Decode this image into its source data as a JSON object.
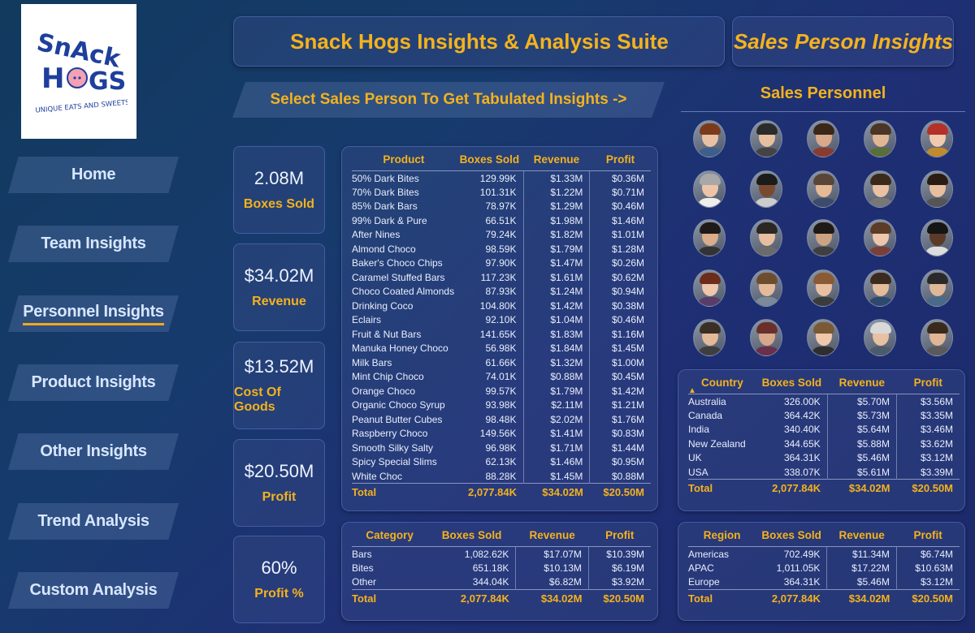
{
  "logo": {
    "brand": "SNACK HOGS",
    "tagline": "UNIQUE EATS AND SWEETS"
  },
  "nav": [
    "Home",
    "Team Insights",
    "Personnel Insights",
    "Product Insights",
    "Other Insights",
    "Trend Analysis",
    "Custom Analysis"
  ],
  "nav_active": "Personnel Insights",
  "title": "Snack Hogs Insights & Analysis Suite",
  "page_title": "Sales Person Insights",
  "select_prompt": "Select Sales Person To Get Tabulated Insights ->",
  "personnel_title": "Sales Personnel",
  "kpis": [
    {
      "value": "2.08M",
      "label": "Boxes Sold"
    },
    {
      "value": "$34.02M",
      "label": "Revenue"
    },
    {
      "value": "$13.52M",
      "label": "Cost Of Goods"
    },
    {
      "value": "$20.50M",
      "label": "Profit"
    },
    {
      "value": "60%",
      "label": "Profit %"
    }
  ],
  "product_table": {
    "headers": [
      "Product",
      "Boxes Sold",
      "Revenue",
      "Profit"
    ],
    "rows": [
      [
        "50% Dark Bites",
        "129.99K",
        "$1.33M",
        "$0.36M"
      ],
      [
        "70% Dark Bites",
        "101.31K",
        "$1.22M",
        "$0.71M"
      ],
      [
        "85% Dark Bars",
        "78.97K",
        "$1.29M",
        "$0.46M"
      ],
      [
        "99% Dark & Pure",
        "66.51K",
        "$1.98M",
        "$1.46M"
      ],
      [
        "After Nines",
        "79.24K",
        "$1.82M",
        "$1.01M"
      ],
      [
        "Almond Choco",
        "98.59K",
        "$1.79M",
        "$1.28M"
      ],
      [
        "Baker's Choco Chips",
        "97.90K",
        "$1.47M",
        "$0.26M"
      ],
      [
        "Caramel Stuffed Bars",
        "117.23K",
        "$1.61M",
        "$0.62M"
      ],
      [
        "Choco Coated Almonds",
        "87.93K",
        "$1.24M",
        "$0.94M"
      ],
      [
        "Drinking Coco",
        "104.80K",
        "$1.42M",
        "$0.38M"
      ],
      [
        "Eclairs",
        "92.10K",
        "$1.04M",
        "$0.46M"
      ],
      [
        "Fruit & Nut Bars",
        "141.65K",
        "$1.83M",
        "$1.16M"
      ],
      [
        "Manuka Honey Choco",
        "56.98K",
        "$1.84M",
        "$1.45M"
      ],
      [
        "Milk Bars",
        "61.66K",
        "$1.32M",
        "$1.00M"
      ],
      [
        "Mint Chip Choco",
        "74.01K",
        "$0.88M",
        "$0.45M"
      ],
      [
        "Orange Choco",
        "99.57K",
        "$1.79M",
        "$1.42M"
      ],
      [
        "Organic Choco Syrup",
        "93.98K",
        "$2.11M",
        "$1.21M"
      ],
      [
        "Peanut Butter Cubes",
        "98.48K",
        "$2.02M",
        "$1.76M"
      ],
      [
        "Raspberry Choco",
        "149.56K",
        "$1.41M",
        "$0.83M"
      ],
      [
        "Smooth Silky Salty",
        "96.98K",
        "$1.71M",
        "$1.44M"
      ],
      [
        "Spicy Special Slims",
        "62.13K",
        "$1.46M",
        "$0.95M"
      ],
      [
        "White Choc",
        "88.28K",
        "$1.45M",
        "$0.88M"
      ]
    ],
    "total": [
      "Total",
      "2,077.84K",
      "$34.02M",
      "$20.50M"
    ]
  },
  "category_table": {
    "headers": [
      "Category",
      "Boxes Sold",
      "Revenue",
      "Profit"
    ],
    "rows": [
      [
        "Bars",
        "1,082.62K",
        "$17.07M",
        "$10.39M"
      ],
      [
        "Bites",
        "651.18K",
        "$10.13M",
        "$6.19M"
      ],
      [
        "Other",
        "344.04K",
        "$6.82M",
        "$3.92M"
      ]
    ],
    "total": [
      "Total",
      "2,077.84K",
      "$34.02M",
      "$20.50M"
    ]
  },
  "country_table": {
    "headers": [
      "Country",
      "Boxes Sold",
      "Revenue",
      "Profit"
    ],
    "rows": [
      [
        "Australia",
        "326.00K",
        "$5.70M",
        "$3.56M"
      ],
      [
        "Canada",
        "364.42K",
        "$5.73M",
        "$3.35M"
      ],
      [
        "India",
        "340.40K",
        "$5.64M",
        "$3.46M"
      ],
      [
        "New Zealand",
        "344.65K",
        "$5.88M",
        "$3.62M"
      ],
      [
        "UK",
        "364.31K",
        "$5.46M",
        "$3.12M"
      ],
      [
        "USA",
        "338.07K",
        "$5.61M",
        "$3.39M"
      ]
    ],
    "total": [
      "Total",
      "2,077.84K",
      "$34.02M",
      "$20.50M"
    ]
  },
  "region_table": {
    "headers": [
      "Region",
      "Boxes Sold",
      "Revenue",
      "Profit"
    ],
    "rows": [
      [
        "Americas",
        "702.49K",
        "$11.34M",
        "$6.74M"
      ],
      [
        "APAC",
        "1,011.05K",
        "$17.22M",
        "$10.63M"
      ],
      [
        "Europe",
        "364.31K",
        "$5.46M",
        "$3.12M"
      ]
    ],
    "total": [
      "Total",
      "2,077.84K",
      "$34.02M",
      "$20.50M"
    ]
  },
  "avatars": [
    {
      "skin": "#e8c1a4",
      "hair": "#7a3b1d",
      "shirt": "#3d5f8a"
    },
    {
      "skin": "#e5bfa0",
      "hair": "#2b2b2b",
      "shirt": "#444444"
    },
    {
      "skin": "#d8a98a",
      "hair": "#3a2718",
      "shirt": "#8a3b2f"
    },
    {
      "skin": "#e0b794",
      "hair": "#4a3526",
      "shirt": "#5a6e3a"
    },
    {
      "skin": "#f0c9ae",
      "hair": "#b5302a",
      "shirt": "#c28a2e"
    },
    {
      "skin": "#ecc4a8",
      "hair": "#a8a8a8",
      "shirt": "#eeeeee"
    },
    {
      "skin": "#7a4a30",
      "hair": "#1b1b1b",
      "shirt": "#cccccc"
    },
    {
      "skin": "#e3b996",
      "hair": "#5a4636",
      "shirt": "#3d4c6b"
    },
    {
      "skin": "#e9c2a4",
      "hair": "#3b2a1c",
      "shirt": "#777777"
    },
    {
      "skin": "#e7be9e",
      "hair": "#2a1c13",
      "shirt": "#555555"
    },
    {
      "skin": "#d9ac8b",
      "hair": "#1e1a17",
      "shirt": "#333333"
    },
    {
      "skin": "#e6bea0",
      "hair": "#2b2725",
      "shirt": "#6b6b6b"
    },
    {
      "skin": "#caa383",
      "hair": "#1f1a16",
      "shirt": "#3f3f3f"
    },
    {
      "skin": "#ecc7ab",
      "hair": "#5c3c26",
      "shirt": "#7b3f3a"
    },
    {
      "skin": "#5b3a27",
      "hair": "#151515",
      "shirt": "#dddddd"
    },
    {
      "skin": "#edc6ab",
      "hair": "#6b2c1c",
      "shirt": "#5a3c6b"
    },
    {
      "skin": "#e4bb9a",
      "hair": "#6e4c2e",
      "shirt": "#7a8a9a"
    },
    {
      "skin": "#e8c0a1",
      "hair": "#8a5a34",
      "shirt": "#3b3b3b"
    },
    {
      "skin": "#e4bc9c",
      "hair": "#3b2b1f",
      "shirt": "#2d4a6e"
    },
    {
      "skin": "#dfb89a",
      "hair": "#2a2a2a",
      "shirt": "#4a6a8a"
    },
    {
      "skin": "#e3b99a",
      "hair": "#3b2f25",
      "shirt": "#3e3e3e"
    },
    {
      "skin": "#d7a88a",
      "hair": "#6a2f2a",
      "shirt": "#6a2f4a"
    },
    {
      "skin": "#efc8ab",
      "hair": "#7a5a36",
      "shirt": "#2e2e2e"
    },
    {
      "skin": "#e8c1a3",
      "hair": "#d9d9d9",
      "shirt": "#4b5b6b"
    },
    {
      "skin": "#e0b697",
      "hair": "#3a2a1d",
      "shirt": "#5a5a5a"
    }
  ]
}
